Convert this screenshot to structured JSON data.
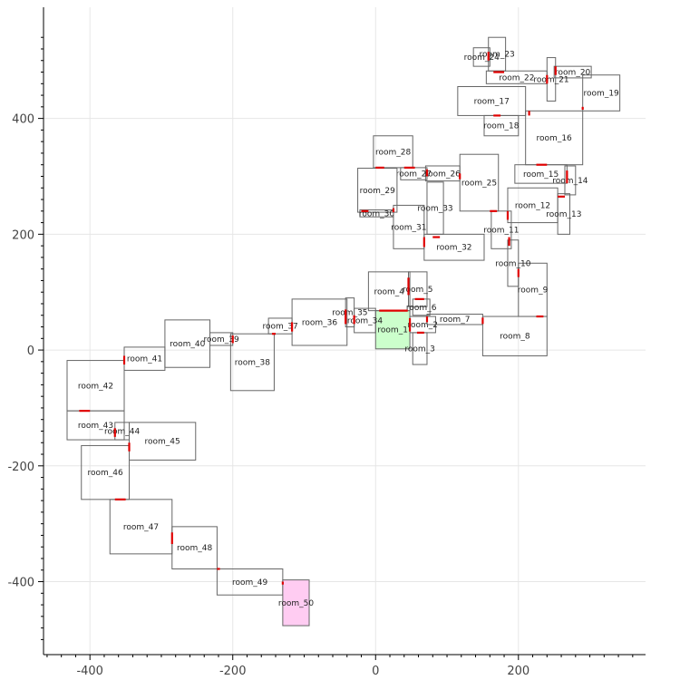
{
  "chart_data": {
    "type": "floorplan",
    "xlim": [
      -465,
      378
    ],
    "ylim": [
      -526,
      592
    ],
    "xticks": [
      -400,
      -200,
      0,
      200
    ],
    "yticks": [
      -400,
      -200,
      0,
      200,
      400
    ],
    "grid": true,
    "colors": {
      "start_room": "#ccffcc",
      "goal_room": "#ffccf2",
      "door": "#e00000",
      "outline": "#666666"
    },
    "rooms": [
      {
        "label": "room_1",
        "x0": 0,
        "x1": 48,
        "y0": 2,
        "y1": 68,
        "fill": "start_room"
      },
      {
        "label": "room_2",
        "x0": 48,
        "x1": 84,
        "y0": 30,
        "y1": 58
      },
      {
        "label": "room_3",
        "x0": 52,
        "x1": 72,
        "y0": -25,
        "y1": 30
      },
      {
        "label": "room_4",
        "x0": -10,
        "x1": 48,
        "y0": 68,
        "y1": 135
      },
      {
        "label": "room_5",
        "x0": 46,
        "x1": 72,
        "y0": 75,
        "y1": 135
      },
      {
        "label": "room_6",
        "x0": 52,
        "x1": 76,
        "y0": 60,
        "y1": 88
      },
      {
        "label": "room_7",
        "x0": 72,
        "x1": 150,
        "y0": 44,
        "y1": 62
      },
      {
        "label": "room_8",
        "x0": 150,
        "x1": 240,
        "y0": -10,
        "y1": 58
      },
      {
        "label": "room_9",
        "x0": 200,
        "x1": 240,
        "y0": 58,
        "y1": 150
      },
      {
        "label": "room_10",
        "x0": 185,
        "x1": 200,
        "y0": 110,
        "y1": 190
      },
      {
        "label": "room_11",
        "x0": 162,
        "x1": 190,
        "y0": 175,
        "y1": 240
      },
      {
        "label": "room_12",
        "x0": 185,
        "x1": 255,
        "y0": 220,
        "y1": 280
      },
      {
        "label": "room_13",
        "x0": 255,
        "x1": 272,
        "y0": 200,
        "y1": 270
      },
      {
        "label": "room_14",
        "x0": 265,
        "x1": 280,
        "y0": 268,
        "y1": 318
      },
      {
        "label": "room_15",
        "x0": 195,
        "x1": 268,
        "y0": 288,
        "y1": 320
      },
      {
        "label": "room_16",
        "x0": 210,
        "x1": 290,
        "y0": 320,
        "y1": 413
      },
      {
        "label": "room_17",
        "x0": 115,
        "x1": 210,
        "y0": 405,
        "y1": 455
      },
      {
        "label": "room_18",
        "x0": 152,
        "x1": 200,
        "y0": 370,
        "y1": 405
      },
      {
        "label": "room_19",
        "x0": 290,
        "x1": 342,
        "y0": 413,
        "y1": 475
      },
      {
        "label": "room_20",
        "x0": 250,
        "x1": 302,
        "y0": 470,
        "y1": 490
      },
      {
        "label": "room_21",
        "x0": 240,
        "x1": 252,
        "y0": 430,
        "y1": 505
      },
      {
        "label": "room_22",
        "x0": 155,
        "x1": 240,
        "y0": 460,
        "y1": 482
      },
      {
        "label": "room_23",
        "x0": 158,
        "x1": 182,
        "y0": 482,
        "y1": 540
      },
      {
        "label": "room_24",
        "x0": 137,
        "x1": 160,
        "y0": 490,
        "y1": 522
      },
      {
        "label": "room_25",
        "x0": 118,
        "x1": 172,
        "y0": 240,
        "y1": 338
      },
      {
        "label": "room_26",
        "x0": 70,
        "x1": 118,
        "y0": 292,
        "y1": 318
      },
      {
        "label": "room_27",
        "x0": 35,
        "x1": 72,
        "y0": 294,
        "y1": 315
      },
      {
        "label": "room_28",
        "x0": -3,
        "x1": 52,
        "y0": 315,
        "y1": 370
      },
      {
        "label": "room_29",
        "x0": -25,
        "x1": 30,
        "y0": 238,
        "y1": 314
      },
      {
        "label": "room_30",
        "x0": -22,
        "x1": 25,
        "y0": 230,
        "y1": 242
      },
      {
        "label": "room_31",
        "x0": 25,
        "x1": 68,
        "y0": 175,
        "y1": 250
      },
      {
        "label": "room_32",
        "x0": 68,
        "x1": 152,
        "y0": 155,
        "y1": 200
      },
      {
        "label": "room_33",
        "x0": 72,
        "x1": 95,
        "y0": 200,
        "y1": 290
      },
      {
        "label": "room_34",
        "x0": -30,
        "x1": 0,
        "y0": 30,
        "y1": 72
      },
      {
        "label": "room_35",
        "x0": -42,
        "x1": -30,
        "y0": 40,
        "y1": 90
      },
      {
        "label": "room_36",
        "x0": -117,
        "x1": -40,
        "y0": 8,
        "y1": 88
      },
      {
        "label": "room_37",
        "x0": -150,
        "x1": -117,
        "y0": 28,
        "y1": 55
      },
      {
        "label": "room_38",
        "x0": -203,
        "x1": -142,
        "y0": -70,
        "y1": 28
      },
      {
        "label": "room_39",
        "x0": -232,
        "x1": -200,
        "y0": 8,
        "y1": 30
      },
      {
        "label": "room_40",
        "x0": -295,
        "x1": -232,
        "y0": -30,
        "y1": 52
      },
      {
        "label": "room_41",
        "x0": -352,
        "x1": -295,
        "y0": -35,
        "y1": 5
      },
      {
        "label": "room_42",
        "x0": -432,
        "x1": -352,
        "y0": -105,
        "y1": -18
      },
      {
        "label": "room_43",
        "x0": -432,
        "x1": -352,
        "y0": -155,
        "y1": -105
      },
      {
        "label": "room_44",
        "x0": -365,
        "x1": -345,
        "y0": -155,
        "y1": -125
      },
      {
        "label": "room_45",
        "x0": -345,
        "x1": -252,
        "y0": -190,
        "y1": -125
      },
      {
        "label": "room_46",
        "x0": -412,
        "x1": -345,
        "y0": -258,
        "y1": -165
      },
      {
        "label": "room_47",
        "x0": -372,
        "x1": -285,
        "y0": -352,
        "y1": -258
      },
      {
        "label": "room_48",
        "x0": -285,
        "x1": -222,
        "y0": -378,
        "y1": -305
      },
      {
        "label": "room_49",
        "x0": -222,
        "x1": -130,
        "y0": -423,
        "y1": -378
      },
      {
        "label": "room_50",
        "x0": -130,
        "x1": -93,
        "y0": -476,
        "y1": -397,
        "fill": "goal_room"
      }
    ],
    "doors": [
      [
        5,
        68,
        45,
        68
      ],
      [
        48,
        32,
        48,
        55
      ],
      [
        58,
        30,
        68,
        30
      ],
      [
        46,
        95,
        46,
        125
      ],
      [
        55,
        88,
        68,
        88
      ],
      [
        72,
        48,
        72,
        58
      ],
      [
        150,
        45,
        150,
        56
      ],
      [
        200,
        126,
        200,
        140
      ],
      [
        225,
        58,
        235,
        58
      ],
      [
        187,
        180,
        187,
        195
      ],
      [
        185,
        225,
        185,
        240
      ],
      [
        255,
        265,
        265,
        265
      ],
      [
        268,
        288,
        268,
        310
      ],
      [
        225,
        320,
        240,
        320
      ],
      [
        215,
        405,
        215,
        413
      ],
      [
        165,
        405,
        175,
        405
      ],
      [
        290,
        415,
        290,
        420
      ],
      [
        252,
        475,
        252,
        490
      ],
      [
        240,
        460,
        240,
        475
      ],
      [
        165,
        480,
        180,
        480
      ],
      [
        158,
        500,
        158,
        515
      ],
      [
        118,
        295,
        118,
        305
      ],
      [
        72,
        300,
        72,
        312
      ],
      [
        40,
        315,
        55,
        315
      ],
      [
        0,
        315,
        12,
        315
      ],
      [
        -20,
        240,
        -10,
        240
      ],
      [
        25,
        238,
        25,
        245
      ],
      [
        68,
        178,
        68,
        195
      ],
      [
        80,
        195,
        90,
        195
      ],
      [
        160,
        240,
        170,
        240
      ],
      [
        -30,
        45,
        -30,
        60
      ],
      [
        -42,
        45,
        -42,
        70
      ],
      [
        -117,
        32,
        -117,
        48
      ],
      [
        -145,
        28,
        -140,
        28
      ],
      [
        -200,
        12,
        -200,
        25
      ],
      [
        -352,
        -25,
        -352,
        -10
      ],
      [
        -415,
        -105,
        -400,
        -105
      ],
      [
        -365,
        -135,
        -365,
        -150
      ],
      [
        -345,
        -160,
        -345,
        -175
      ],
      [
        -365,
        -258,
        -350,
        -258
      ],
      [
        -285,
        -315,
        -285,
        -335
      ],
      [
        -222,
        -378,
        -218,
        -378
      ],
      [
        -130,
        -400,
        -130,
        -405
      ]
    ]
  }
}
